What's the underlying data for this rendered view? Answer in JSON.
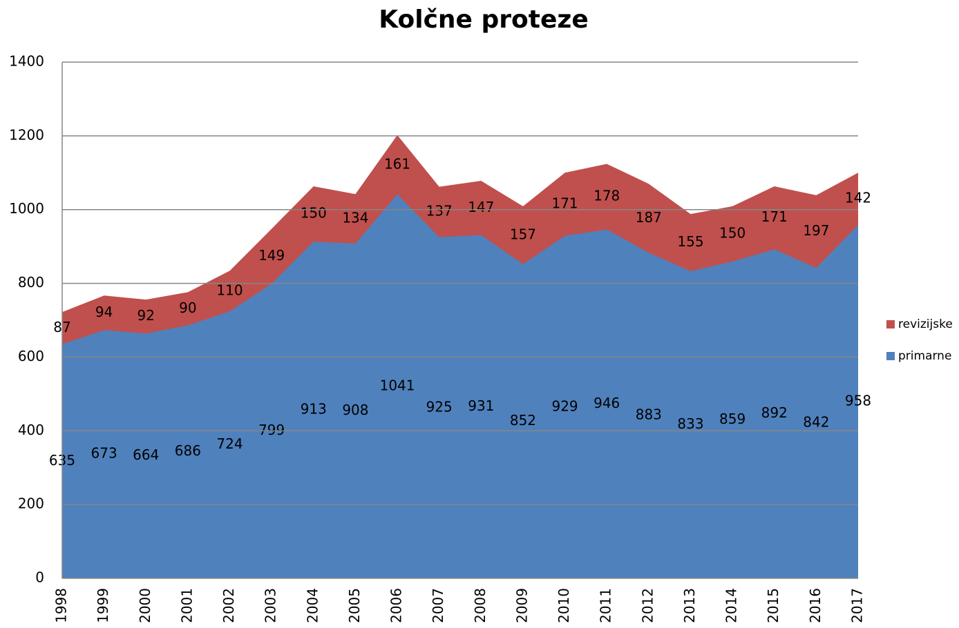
{
  "chart_data": {
    "type": "stacked_area",
    "title": "Kolčne proteze",
    "categories": [
      "1998",
      "1999",
      "2000",
      "2001",
      "2002",
      "2003",
      "2004",
      "2005",
      "2006",
      "2007",
      "2008",
      "2009",
      "2010",
      "2011",
      "2012",
      "2013",
      "2014",
      "2015",
      "2016",
      "2017"
    ],
    "series": [
      {
        "name": "primarne",
        "color": "#4f81bd",
        "values": [
          635,
          673,
          664,
          686,
          724,
          799,
          913,
          908,
          1041,
          925,
          931,
          852,
          929,
          946,
          883,
          833,
          859,
          892,
          842,
          958
        ]
      },
      {
        "name": "revizijske",
        "color": "#c0504d",
        "values": [
          87,
          94,
          92,
          90,
          110,
          149,
          150,
          134,
          161,
          137,
          147,
          157,
          171,
          178,
          187,
          155,
          150,
          171,
          197,
          142
        ]
      }
    ],
    "ylim": [
      0,
      1400
    ],
    "yticks": [
      0,
      200,
      400,
      600,
      800,
      1000,
      1200,
      1400
    ],
    "grid": true,
    "legend": "right"
  }
}
